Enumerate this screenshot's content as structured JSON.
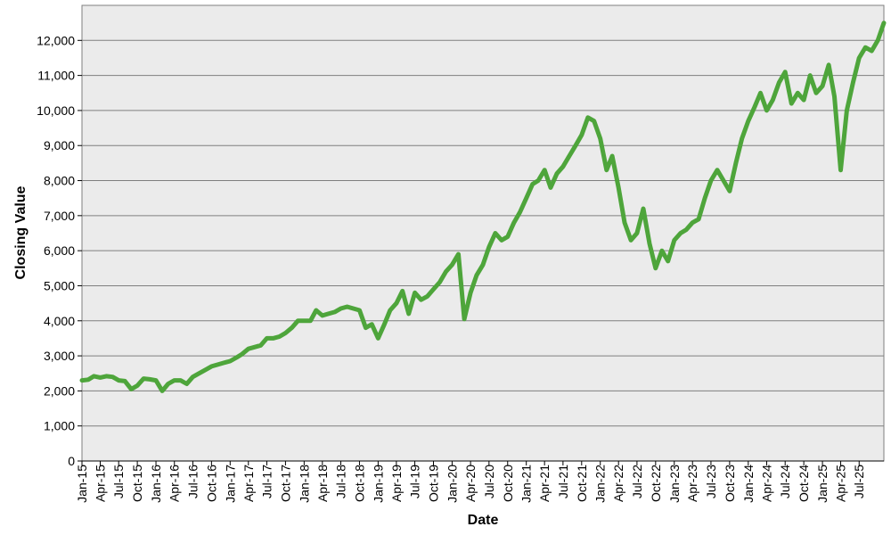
{
  "chart_data": {
    "type": "line",
    "title": "",
    "xlabel": "Date",
    "ylabel": "Closing Value",
    "ylim": [
      0,
      13000
    ],
    "grid": {
      "horizontal": true,
      "vertical": false
    },
    "legend": "none",
    "colors": {
      "line": "#4ea53b",
      "plot_background": "#ebebeb",
      "grid": "#7f7f7f"
    },
    "y_ticks": [
      {
        "value": 0,
        "label": "0"
      },
      {
        "value": 1000,
        "label": "1,000"
      },
      {
        "value": 2000,
        "label": "2,000"
      },
      {
        "value": 3000,
        "label": "3,000"
      },
      {
        "value": 4000,
        "label": "4,000"
      },
      {
        "value": 5000,
        "label": "5,000"
      },
      {
        "value": 6000,
        "label": "6,000"
      },
      {
        "value": 7000,
        "label": "7,000"
      },
      {
        "value": 8000,
        "label": "8,000"
      },
      {
        "value": 9000,
        "label": "9,000"
      },
      {
        "value": 10000,
        "label": "10,000"
      },
      {
        "value": 11000,
        "label": "11,000"
      },
      {
        "value": 12000,
        "label": "12,000"
      }
    ],
    "x_ticks": [
      {
        "date": "2015-01-01",
        "label": "Jan-15"
      },
      {
        "date": "2015-04-01",
        "label": "Apr-15"
      },
      {
        "date": "2015-07-01",
        "label": "Jul-15"
      },
      {
        "date": "2015-10-01",
        "label": "Oct-15"
      },
      {
        "date": "2016-01-01",
        "label": "Jan-16"
      },
      {
        "date": "2016-04-01",
        "label": "Apr-16"
      },
      {
        "date": "2016-07-01",
        "label": "Jul-16"
      },
      {
        "date": "2016-10-01",
        "label": "Oct-16"
      },
      {
        "date": "2017-01-01",
        "label": "Jan-17"
      },
      {
        "date": "2017-04-01",
        "label": "Apr-17"
      },
      {
        "date": "2017-07-01",
        "label": "Jul-17"
      },
      {
        "date": "2017-10-01",
        "label": "Oct-17"
      },
      {
        "date": "2018-01-01",
        "label": "Jan-18"
      },
      {
        "date": "2018-04-01",
        "label": "Apr-18"
      },
      {
        "date": "2018-07-01",
        "label": "Jul-18"
      },
      {
        "date": "2018-10-01",
        "label": "Oct-18"
      },
      {
        "date": "2019-01-01",
        "label": "Jan-19"
      },
      {
        "date": "2019-04-01",
        "label": "Apr-19"
      },
      {
        "date": "2019-07-01",
        "label": "Jul-19"
      },
      {
        "date": "2019-10-01",
        "label": "Oct-19"
      },
      {
        "date": "2020-01-01",
        "label": "Jan-20"
      },
      {
        "date": "2020-04-01",
        "label": "Apr-20"
      },
      {
        "date": "2020-07-01",
        "label": "Jul-20"
      },
      {
        "date": "2020-10-01",
        "label": "Oct-20"
      },
      {
        "date": "2021-01-01",
        "label": "Jan-21"
      },
      {
        "date": "2021-04-01",
        "label": "Apr-21"
      },
      {
        "date": "2021-07-01",
        "label": "Jul-21"
      },
      {
        "date": "2021-10-01",
        "label": "Oct-21"
      },
      {
        "date": "2022-01-01",
        "label": "Jan-22"
      },
      {
        "date": "2022-04-01",
        "label": "Apr-22"
      },
      {
        "date": "2022-07-01",
        "label": "Jul-22"
      },
      {
        "date": "2022-10-01",
        "label": "Oct-22"
      },
      {
        "date": "2023-01-01",
        "label": "Jan-23"
      },
      {
        "date": "2023-04-01",
        "label": "Apr-23"
      },
      {
        "date": "2023-07-01",
        "label": "Jul-23"
      },
      {
        "date": "2023-10-01",
        "label": "Oct-23"
      },
      {
        "date": "2024-01-01",
        "label": "Jan-24"
      },
      {
        "date": "2024-04-01",
        "label": "Apr-24"
      },
      {
        "date": "2024-07-01",
        "label": "Jul-24"
      },
      {
        "date": "2024-10-01",
        "label": "Oct-24"
      },
      {
        "date": "2025-01-01",
        "label": "Jan-25"
      },
      {
        "date": "2025-04-01",
        "label": "Apr-25"
      },
      {
        "date": "2025-07-01",
        "label": "Jul-25"
      }
    ],
    "x_range": [
      "2015-01-01",
      "2025-10-31"
    ],
    "series": [
      {
        "points": [
          [
            "2015-01-01",
            2300
          ],
          [
            "2015-02-01",
            2320
          ],
          [
            "2015-03-01",
            2420
          ],
          [
            "2015-04-01",
            2380
          ],
          [
            "2015-05-01",
            2420
          ],
          [
            "2015-06-01",
            2400
          ],
          [
            "2015-07-01",
            2300
          ],
          [
            "2015-08-01",
            2280
          ],
          [
            "2015-09-01",
            2050
          ],
          [
            "2015-10-01",
            2150
          ],
          [
            "2015-11-01",
            2350
          ],
          [
            "2015-12-01",
            2330
          ],
          [
            "2016-01-01",
            2300
          ],
          [
            "2016-02-01",
            2000
          ],
          [
            "2016-03-01",
            2200
          ],
          [
            "2016-04-01",
            2300
          ],
          [
            "2016-05-01",
            2300
          ],
          [
            "2016-06-01",
            2200
          ],
          [
            "2016-07-01",
            2400
          ],
          [
            "2016-08-01",
            2500
          ],
          [
            "2016-09-01",
            2600
          ],
          [
            "2016-10-01",
            2700
          ],
          [
            "2016-11-01",
            2750
          ],
          [
            "2016-12-01",
            2800
          ],
          [
            "2017-01-01",
            2850
          ],
          [
            "2017-02-01",
            2950
          ],
          [
            "2017-03-01",
            3050
          ],
          [
            "2017-04-01",
            3200
          ],
          [
            "2017-05-01",
            3250
          ],
          [
            "2017-06-01",
            3300
          ],
          [
            "2017-07-01",
            3500
          ],
          [
            "2017-08-01",
            3500
          ],
          [
            "2017-09-01",
            3550
          ],
          [
            "2017-10-01",
            3650
          ],
          [
            "2017-11-01",
            3800
          ],
          [
            "2017-12-01",
            4000
          ],
          [
            "2018-01-01",
            4000
          ],
          [
            "2018-02-01",
            4000
          ],
          [
            "2018-03-01",
            4300
          ],
          [
            "2018-04-01",
            4150
          ],
          [
            "2018-05-01",
            4200
          ],
          [
            "2018-06-01",
            4250
          ],
          [
            "2018-07-01",
            4350
          ],
          [
            "2018-08-01",
            4400
          ],
          [
            "2018-09-01",
            4350
          ],
          [
            "2018-10-01",
            4300
          ],
          [
            "2018-11-01",
            3800
          ],
          [
            "2018-12-01",
            3900
          ],
          [
            "2019-01-01",
            3500
          ],
          [
            "2019-02-01",
            3900
          ],
          [
            "2019-03-01",
            4300
          ],
          [
            "2019-04-01",
            4500
          ],
          [
            "2019-05-01",
            4850
          ],
          [
            "2019-06-01",
            4200
          ],
          [
            "2019-07-01",
            4800
          ],
          [
            "2019-08-01",
            4600
          ],
          [
            "2019-09-01",
            4700
          ],
          [
            "2019-10-01",
            4900
          ],
          [
            "2019-11-01",
            5100
          ],
          [
            "2019-12-01",
            5400
          ],
          [
            "2020-01-01",
            5600
          ],
          [
            "2020-02-01",
            5900
          ],
          [
            "2020-03-01",
            4050
          ],
          [
            "2020-04-01",
            4800
          ],
          [
            "2020-05-01",
            5300
          ],
          [
            "2020-06-01",
            5600
          ],
          [
            "2020-07-01",
            6100
          ],
          [
            "2020-08-01",
            6500
          ],
          [
            "2020-09-01",
            6300
          ],
          [
            "2020-10-01",
            6400
          ],
          [
            "2020-11-01",
            6800
          ],
          [
            "2020-12-01",
            7100
          ],
          [
            "2021-01-01",
            7500
          ],
          [
            "2021-02-01",
            7900
          ],
          [
            "2021-03-01",
            8000
          ],
          [
            "2021-04-01",
            8300
          ],
          [
            "2021-05-01",
            7800
          ],
          [
            "2021-06-01",
            8200
          ],
          [
            "2021-07-01",
            8400
          ],
          [
            "2021-08-01",
            8700
          ],
          [
            "2021-09-01",
            9000
          ],
          [
            "2021-10-01",
            9300
          ],
          [
            "2021-11-01",
            9800
          ],
          [
            "2021-12-01",
            9700
          ],
          [
            "2022-01-01",
            9200
          ],
          [
            "2022-02-01",
            8300
          ],
          [
            "2022-03-01",
            8700
          ],
          [
            "2022-04-01",
            7800
          ],
          [
            "2022-05-01",
            6800
          ],
          [
            "2022-06-01",
            6300
          ],
          [
            "2022-07-01",
            6500
          ],
          [
            "2022-08-01",
            7200
          ],
          [
            "2022-09-01",
            6200
          ],
          [
            "2022-10-01",
            5500
          ],
          [
            "2022-11-01",
            6000
          ],
          [
            "2022-12-01",
            5700
          ],
          [
            "2023-01-01",
            6300
          ],
          [
            "2023-02-01",
            6500
          ],
          [
            "2023-03-01",
            6600
          ],
          [
            "2023-04-01",
            6800
          ],
          [
            "2023-05-01",
            6900
          ],
          [
            "2023-06-01",
            7500
          ],
          [
            "2023-07-01",
            8000
          ],
          [
            "2023-08-01",
            8300
          ],
          [
            "2023-09-01",
            8000
          ],
          [
            "2023-10-01",
            7700
          ],
          [
            "2023-11-01",
            8500
          ],
          [
            "2023-12-01",
            9200
          ],
          [
            "2024-01-01",
            9700
          ],
          [
            "2024-02-01",
            10100
          ],
          [
            "2024-03-01",
            10500
          ],
          [
            "2024-04-01",
            10000
          ],
          [
            "2024-05-01",
            10300
          ],
          [
            "2024-06-01",
            10800
          ],
          [
            "2024-07-01",
            11100
          ],
          [
            "2024-08-01",
            10200
          ],
          [
            "2024-09-01",
            10500
          ],
          [
            "2024-10-01",
            10300
          ],
          [
            "2024-11-01",
            11000
          ],
          [
            "2024-12-01",
            10500
          ],
          [
            "2025-01-01",
            10700
          ],
          [
            "2025-02-01",
            11300
          ],
          [
            "2025-03-01",
            10400
          ],
          [
            "2025-04-01",
            8300
          ],
          [
            "2025-05-01",
            10000
          ],
          [
            "2025-06-01",
            10800
          ],
          [
            "2025-07-01",
            11500
          ],
          [
            "2025-08-01",
            11800
          ],
          [
            "2025-09-01",
            11700
          ],
          [
            "2025-10-01",
            12000
          ],
          [
            "2025-10-31",
            12500
          ]
        ]
      }
    ]
  }
}
